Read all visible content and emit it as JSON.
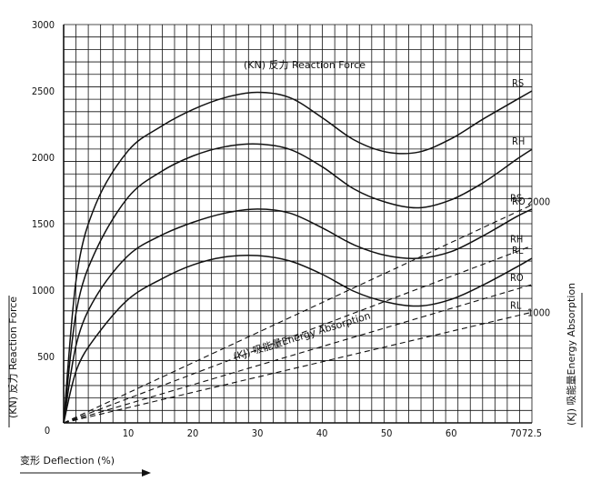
{
  "chart_data": {
    "type": "line",
    "annotation_force": "(KN) 反力 Reaction Force",
    "annotation_energy": "(KJ) 吸能量Energy Absorption",
    "xlabel": "变形 Deflection (%)",
    "ylabel_left": "(KN) 反力 Reaction Force",
    "ylabel_right": "(KJ) 吸能量Energy Absorption",
    "x_ticks": [
      "10",
      "20",
      "30",
      "40",
      "50",
      "60",
      "70",
      "72.5"
    ],
    "x_tick_values": [
      10,
      20,
      30,
      40,
      50,
      60,
      70,
      72.5
    ],
    "y_ticks": [
      "0",
      "500",
      "1000",
      "1500",
      "2000",
      "2500",
      "3000"
    ],
    "y_tick_values": [
      0,
      500,
      1000,
      1500,
      2000,
      2500,
      3000
    ],
    "y2_ticks": [
      "1000",
      "2000"
    ],
    "y2_tick_values": [
      1000,
      2000
    ],
    "xlim": [
      0,
      72.5
    ],
    "ylim": [
      0,
      3000
    ],
    "y2lim": [
      0,
      3600
    ],
    "grid": true,
    "force_series": [
      {
        "name": "RS",
        "x": [
          0,
          2,
          5,
          10,
          15,
          20,
          25,
          30,
          35,
          40,
          45,
          50,
          55,
          60,
          65,
          70,
          72.5
        ],
        "y": [
          0,
          1100,
          1650,
          2050,
          2230,
          2360,
          2450,
          2490,
          2450,
          2300,
          2130,
          2040,
          2040,
          2140,
          2290,
          2430,
          2500
        ]
      },
      {
        "name": "RH",
        "x": [
          0,
          2,
          5,
          10,
          15,
          20,
          25,
          30,
          35,
          40,
          45,
          50,
          55,
          60,
          65,
          70,
          72.5
        ],
        "y": [
          0,
          850,
          1300,
          1700,
          1890,
          2010,
          2080,
          2100,
          2060,
          1930,
          1760,
          1660,
          1620,
          1680,
          1810,
          1980,
          2060
        ]
      },
      {
        "name": "RO",
        "x": [
          0,
          2,
          5,
          10,
          15,
          20,
          25,
          30,
          35,
          40,
          45,
          50,
          55,
          60,
          65,
          70,
          72.5
        ],
        "y": [
          0,
          600,
          950,
          1260,
          1410,
          1510,
          1580,
          1610,
          1580,
          1470,
          1340,
          1260,
          1240,
          1290,
          1410,
          1550,
          1610
        ]
      },
      {
        "name": "RL",
        "x": [
          0,
          2,
          5,
          10,
          15,
          20,
          25,
          30,
          35,
          40,
          45,
          50,
          55,
          60,
          65,
          70,
          72.5
        ],
        "y": [
          0,
          400,
          650,
          930,
          1080,
          1190,
          1250,
          1260,
          1220,
          1120,
          990,
          910,
          880,
          930,
          1040,
          1170,
          1240
        ]
      }
    ],
    "energy_series": [
      {
        "name": "RS",
        "x": [
          0,
          72.5
        ],
        "y": [
          0,
          1970
        ]
      },
      {
        "name": "RH",
        "x": [
          0,
          72.5
        ],
        "y": [
          0,
          1600
        ]
      },
      {
        "name": "RO",
        "x": [
          0,
          72.5
        ],
        "y": [
          0,
          1250
        ]
      },
      {
        "name": "RL",
        "x": [
          0,
          72.5
        ],
        "y": [
          0,
          1000
        ]
      }
    ]
  },
  "colors": {
    "line": "#111111",
    "grid": "#111111",
    "background": "#ffffff"
  }
}
